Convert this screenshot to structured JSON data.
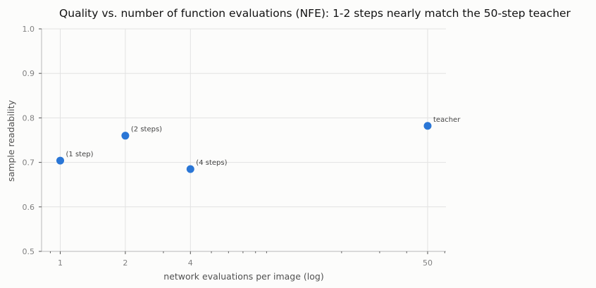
{
  "chart_data": {
    "type": "scatter",
    "title": "Quality vs. number of function evaluations (NFE): 1-2 steps nearly match the 50-step teacher",
    "xlabel": "network evaluations per image (log)",
    "ylabel": "sample readability",
    "x_scale": "log",
    "x_ticks": [
      1,
      2,
      4,
      50
    ],
    "x_tick_labels": [
      "1",
      "2",
      "4",
      "50"
    ],
    "ylim": [
      0.5,
      1.0
    ],
    "y_ticks": [
      0.5,
      0.6,
      0.7,
      0.8,
      0.9,
      1.0
    ],
    "y_tick_labels": [
      "0.5",
      "0.6",
      "0.7",
      "0.8",
      "0.9",
      "1.0"
    ],
    "grid": true,
    "point_color": "#2a76d6",
    "points": [
      {
        "x": 1,
        "y": 0.704,
        "label": "(1 step)"
      },
      {
        "x": 2,
        "y": 0.76,
        "label": "(2 steps)"
      },
      {
        "x": 4,
        "y": 0.685,
        "label": "(4 steps)"
      },
      {
        "x": 50,
        "y": 0.782,
        "label": "teacher"
      }
    ]
  }
}
